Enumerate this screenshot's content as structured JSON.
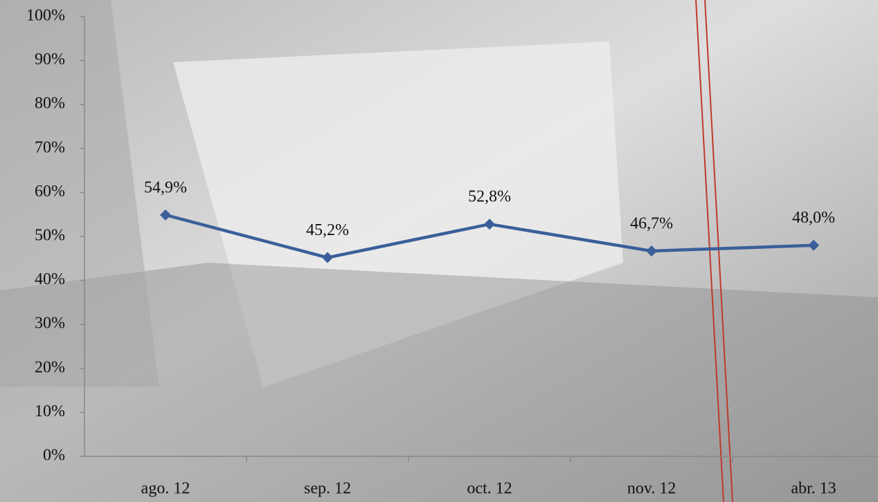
{
  "chart_data": {
    "type": "line",
    "categories": [
      "ago. 12",
      "sep. 12",
      "oct. 12",
      "nov. 12",
      "abr. 13"
    ],
    "values": [
      54.9,
      45.2,
      52.8,
      46.7,
      48.0
    ],
    "value_labels": [
      "54,9%",
      "45,2%",
      "52,8%",
      "46,7%",
      "48,0%"
    ],
    "color": "#3a5f9a",
    "ylim": [
      0,
      100
    ],
    "yticks": [
      {
        "value": 0,
        "label": "0%"
      },
      {
        "value": 10,
        "label": "10%"
      },
      {
        "value": 20,
        "label": "20%"
      },
      {
        "value": 30,
        "label": "30%"
      },
      {
        "value": 40,
        "label": "40%"
      },
      {
        "value": 50,
        "label": "50%"
      },
      {
        "value": 60,
        "label": "60%"
      },
      {
        "value": 70,
        "label": "70%"
      },
      {
        "value": 80,
        "label": "80%"
      },
      {
        "value": 90,
        "label": "90%"
      },
      {
        "value": 100,
        "label": "100%"
      }
    ],
    "grid": false
  }
}
